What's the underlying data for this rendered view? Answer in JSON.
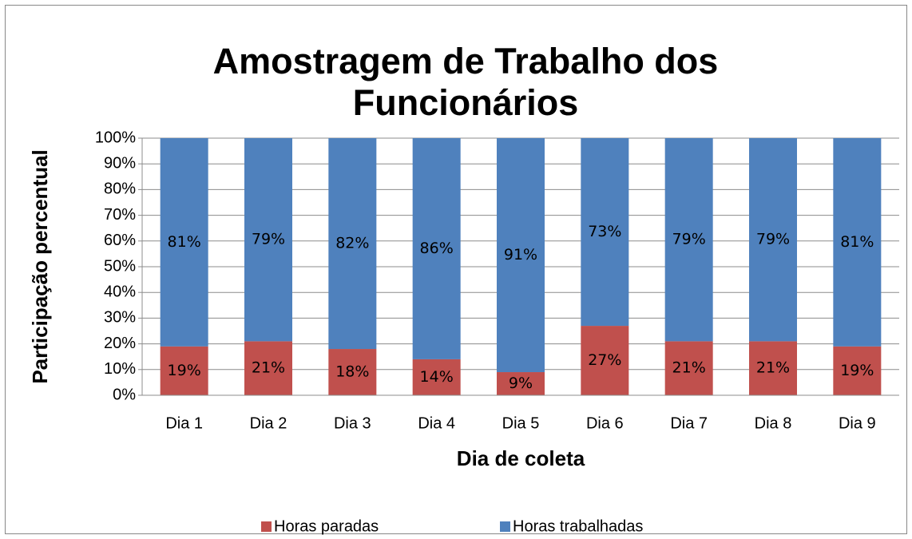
{
  "chart_data": {
    "type": "stacked_bar",
    "title": [
      "Amostragem de Trabalho dos",
      "Funcionários"
    ],
    "x_label": "Dia de coleta",
    "y_label": "Participação percentual",
    "categories": [
      "Dia 1",
      "Dia 2",
      "Dia 3",
      "Dia 4",
      "Dia 5",
      "Dia 6",
      "Dia 7",
      "Dia 8",
      "Dia 9"
    ],
    "series": [
      {
        "name": "Horas paradas",
        "color": "#c0504d",
        "values": [
          19,
          21,
          18,
          14,
          9,
          27,
          21,
          21,
          19
        ],
        "value_labels": [
          "19%",
          "21%",
          "18%",
          "14%",
          "9%",
          "27%",
          "21%",
          "21%",
          "19%"
        ]
      },
      {
        "name": "Horas trabalhadas",
        "color": "#4f81bd",
        "values": [
          81,
          79,
          82,
          86,
          91,
          73,
          79,
          79,
          81
        ],
        "value_labels": [
          "81%",
          "79%",
          "82%",
          "86%",
          "91%",
          "73%",
          "79%",
          "79%",
          "81%"
        ]
      }
    ],
    "ylim": [
      0,
      100
    ],
    "yticks": [
      {
        "value": 0,
        "label": "0%"
      },
      {
        "value": 10,
        "label": "10%"
      },
      {
        "value": 20,
        "label": "20%"
      },
      {
        "value": 30,
        "label": "30%"
      },
      {
        "value": 40,
        "label": "40%"
      },
      {
        "value": 50,
        "label": "50%"
      },
      {
        "value": 60,
        "label": "60%"
      },
      {
        "value": 70,
        "label": "70%"
      },
      {
        "value": 80,
        "label": "80%"
      },
      {
        "value": 90,
        "label": "90%"
      },
      {
        "value": 100,
        "label": "100%"
      }
    ],
    "grid": true,
    "legend": "bottom"
  }
}
